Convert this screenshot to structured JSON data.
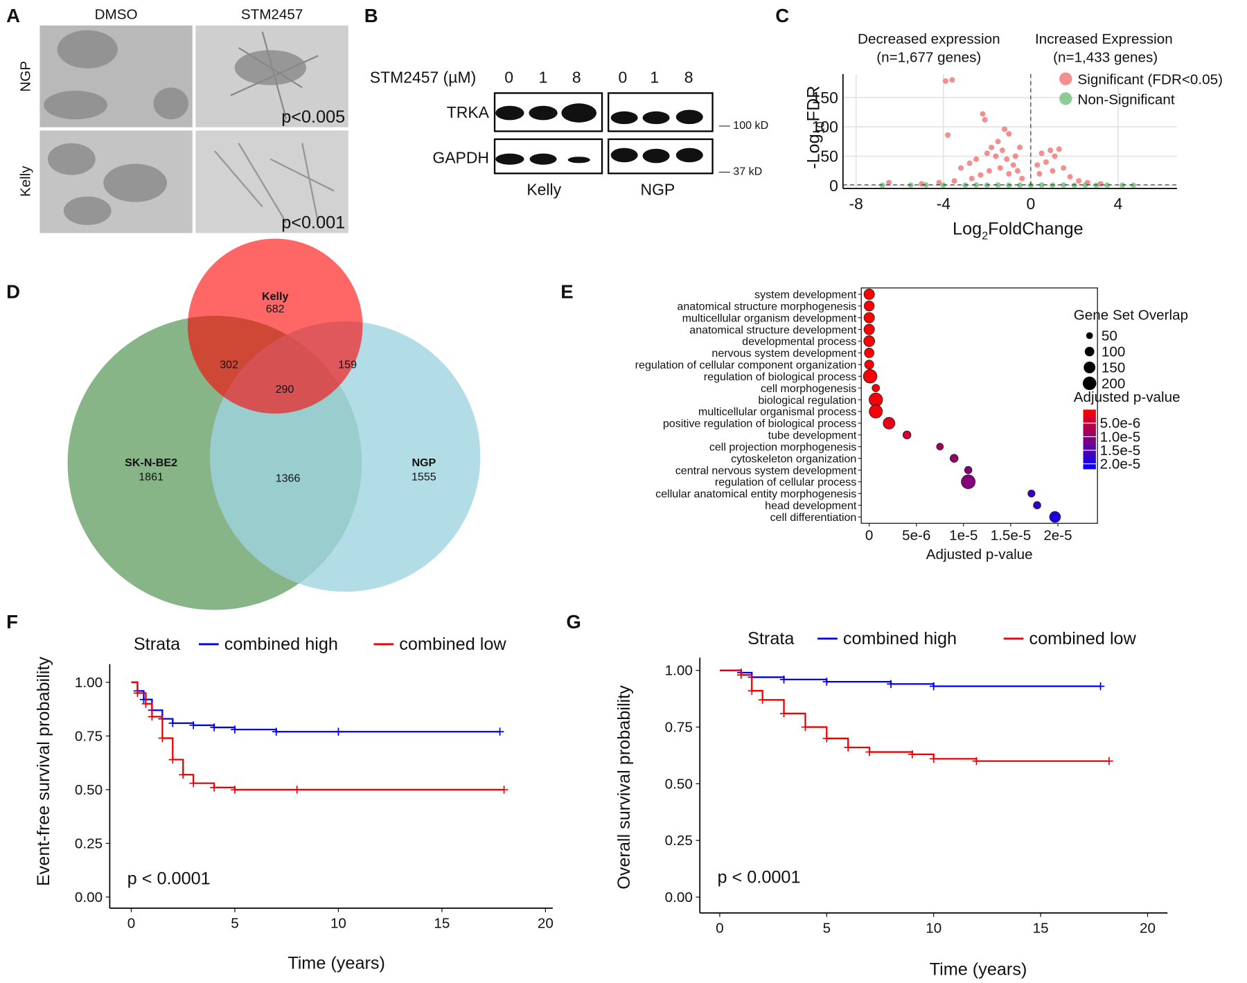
{
  "panel_labels": [
    "A",
    "B",
    "C",
    "D",
    "E",
    "F",
    "G"
  ],
  "panel_a": {
    "columns": [
      "DMSO",
      "STM2457"
    ],
    "rows": [
      "NGP",
      "Kelly"
    ],
    "p_values": [
      "p<0.005",
      "p<0.001"
    ]
  },
  "panel_b": {
    "treatment": "STM2457 (µM)",
    "doses": [
      "0",
      "1",
      "8",
      "0",
      "1",
      "8"
    ],
    "proteins": [
      "TRKA",
      "GAPDH"
    ],
    "markers": [
      "— 100 kD",
      "— 37 kD"
    ],
    "cell_lines": [
      "Kelly",
      "NGP"
    ]
  },
  "panel_d": {
    "sets": [
      {
        "name": "Kelly",
        "count": 682
      },
      {
        "name": "SK-N-BE2",
        "count": 1861
      },
      {
        "name": "NGP",
        "count": 1555
      }
    ],
    "overlaps": [
      302,
      159,
      290,
      1366
    ]
  },
  "chart_data": [
    {
      "type": "scatter",
      "annotations": [
        "Decreased expression",
        "(n=1,677 genes)",
        "Increased Expression",
        "(n=1,433 genes)"
      ],
      "x_label": [
        "Log",
        "2",
        "FoldChange"
      ],
      "y_label": [
        "-Log",
        "10",
        "FDR"
      ],
      "xlim": [
        -8.6,
        6.7
      ],
      "ylim": [
        -5,
        190
      ],
      "xticks": [
        -8,
        -4,
        0,
        4
      ],
      "yticks": [
        0,
        50,
        100,
        150
      ],
      "grid": true,
      "reference_lines": {
        "x": 0,
        "y": 1.3
      },
      "series": [
        {
          "name": "Significant (FDR<0.05)",
          "color": "#f06060",
          "x": [
            -3.9,
            -3.6,
            -2.2,
            -2.1,
            -3.8,
            -1.2,
            -1.0,
            -1.5,
            -1.8,
            -2.5,
            -2.8,
            -3.2,
            -2.0,
            -1.6,
            -1.3,
            -1.1,
            -0.8,
            -0.6,
            -0.4,
            -1.4,
            -1.9,
            -2.3,
            -2.7,
            -3.5,
            -4.2,
            -5.0,
            -6.5,
            -1.0,
            -0.7,
            -0.5,
            0.3,
            0.5,
            0.7,
            0.9,
            1.1,
            1.3,
            1.5,
            1.8,
            2.2,
            0.4,
            1.0,
            2.6,
            3.2
          ],
          "values": [
            178,
            180,
            122,
            112,
            86,
            96,
            88,
            75,
            65,
            45,
            38,
            30,
            55,
            50,
            60,
            45,
            35,
            25,
            12,
            30,
            25,
            18,
            12,
            8,
            5,
            3,
            5,
            20,
            50,
            65,
            35,
            55,
            40,
            60,
            50,
            62,
            30,
            15,
            8,
            20,
            25,
            5,
            3
          ]
        },
        {
          "name": "Non-Significant",
          "color": "#5fb86a",
          "x": [
            -6.8,
            -5.5,
            -4.8,
            -4,
            -3,
            -2.5,
            -2,
            -1.5,
            -1,
            -0.5,
            0,
            0.5,
            1,
            1.5,
            2,
            2.5,
            3,
            3.5,
            4.2,
            4.7
          ],
          "values": [
            0.5,
            0.8,
            1,
            0.5,
            0.7,
            1,
            0.8,
            1,
            0.6,
            0.8,
            0.5,
            0.9,
            0.7,
            1,
            0.6,
            0.8,
            0.5,
            0.7,
            0.6,
            0.4
          ]
        }
      ]
    },
    {
      "type": "dot",
      "categories": [
        "system development",
        "anatomical structure morphogenesis",
        "multicellular organism development",
        "anatomical structure development",
        "developmental process",
        "nervous system development",
        "regulation of cellular component organization",
        "regulation of biological process",
        "cell morphogenesis",
        "biological regulation",
        "multicellular organismal process",
        "positive regulation of biological process",
        "tube development",
        "cell projection morphogenesis",
        "cytoskeleton organization",
        "central nervous system development",
        "regulation of cellular process",
        "cellular anatomical entity morphogenesis",
        "head development",
        "cell differentiation"
      ],
      "values": [
        0,
        0,
        0,
        0,
        0,
        0,
        0,
        1e-07,
        7e-07,
        7e-07,
        7e-07,
        2.1e-06,
        4e-06,
        7.5e-06,
        9e-06,
        1.05e-05,
        1.05e-05,
        1.72e-05,
        1.78e-05,
        1.97e-05
      ],
      "sizes": [
        120,
        110,
        120,
        120,
        130,
        100,
        90,
        200,
        60,
        200,
        190,
        150,
        70,
        50,
        70,
        60,
        210,
        55,
        60,
        130
      ],
      "x_label": "Adjusted p-value",
      "xlim": [
        -8.4e-07,
        2.42e-05
      ],
      "xticks": [
        0,
        {
          "value": 5e-06,
          "label": "5e-6"
        },
        {
          "value": 1e-05,
          "label": "1e-5"
        },
        {
          "value": 1.5e-05,
          "label": "1.5e-5"
        },
        {
          "value": 2e-05,
          "label": "2e-5"
        }
      ],
      "size_legend": {
        "title": "Gene Set Overlap",
        "values": [
          50,
          100,
          150,
          200
        ]
      },
      "color_legend": {
        "title": "Adjusted p-value",
        "colorlim": [
          0,
          2.2e-05
        ],
        "colors": [
          "#ff0000",
          "#0000ff"
        ],
        "ticks": [
          {
            "value": 5e-06,
            "label": "5.0e-6"
          },
          {
            "value": 1e-05,
            "label": "1.0e-5"
          },
          {
            "value": 1.5e-05,
            "label": "1.5e-5"
          },
          {
            "value": 2e-05,
            "label": "2.0e-5"
          }
        ]
      }
    },
    {
      "type": "step",
      "x_label": "Time (years)",
      "y_label": "Event-free survival probability",
      "legend_title": "Strata",
      "annotation": "p < 0.0001",
      "xlim": [
        -1.04,
        20.35
      ],
      "ylim": [
        -0.052,
        1.085
      ],
      "xticks": [
        0,
        5,
        10,
        15,
        20
      ],
      "yticks": [
        {
          "value": 0,
          "label": "0.00"
        },
        {
          "value": 0.25,
          "label": "0.25"
        },
        {
          "value": 0.5,
          "label": "0.50"
        },
        {
          "value": 0.75,
          "label": "0.75"
        },
        {
          "value": 1,
          "label": "1.00"
        }
      ],
      "series": [
        {
          "name": "combined high",
          "color": "#0000ee",
          "x": [
            0,
            0.3,
            0.6,
            1,
            1.5,
            2,
            3,
            4,
            5,
            7,
            10,
            17.8
          ],
          "values": [
            1,
            0.96,
            0.92,
            0.87,
            0.83,
            0.81,
            0.8,
            0.79,
            0.78,
            0.77,
            0.77,
            0.77
          ]
        },
        {
          "name": "combined low",
          "color": "#ee0000",
          "x": [
            0,
            0.3,
            0.7,
            1,
            1.5,
            2,
            2.5,
            3,
            4,
            5,
            8,
            18
          ],
          "values": [
            1,
            0.95,
            0.9,
            0.84,
            0.74,
            0.64,
            0.57,
            0.53,
            0.51,
            0.5,
            0.5,
            0.5
          ]
        }
      ]
    },
    {
      "type": "step",
      "x_label": "Time (years)",
      "y_label": "Overall survival probability",
      "legend_title": "Strata",
      "annotation": "p < 0.0001",
      "xlim": [
        -0.93,
        20.93
      ],
      "ylim": [
        -0.07,
        1.056
      ],
      "xticks": [
        0,
        5,
        10,
        15,
        20
      ],
      "yticks": [
        {
          "value": 0,
          "label": "0.00"
        },
        {
          "value": 0.25,
          "label": "0.25"
        },
        {
          "value": 0.5,
          "label": "0.50"
        },
        {
          "value": 0.75,
          "label": "0.75"
        },
        {
          "value": 1,
          "label": "1.00"
        }
      ],
      "series": [
        {
          "name": "combined high",
          "color": "#0000ee",
          "x": [
            0,
            1,
            1.5,
            3,
            5,
            8,
            10,
            17.8
          ],
          "values": [
            1,
            0.99,
            0.97,
            0.96,
            0.95,
            0.94,
            0.93,
            0.93
          ]
        },
        {
          "name": "combined low",
          "color": "#ee0000",
          "x": [
            0,
            1,
            1.5,
            2,
            3,
            4,
            5,
            6,
            7,
            9,
            10,
            12,
            18.2
          ],
          "values": [
            1,
            0.98,
            0.91,
            0.87,
            0.81,
            0.75,
            0.7,
            0.66,
            0.64,
            0.63,
            0.61,
            0.6,
            0.6
          ]
        }
      ]
    }
  ]
}
